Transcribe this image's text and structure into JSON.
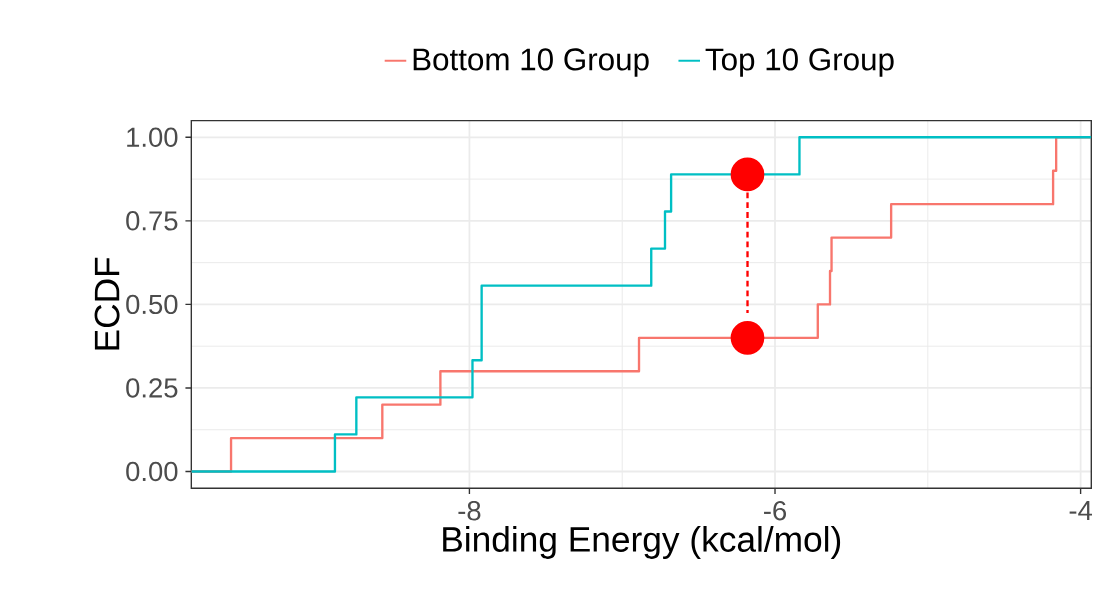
{
  "chart_data": {
    "type": "step",
    "xlabel": "Binding Energy (kcal/mol)",
    "ylabel": "ECDF",
    "xlim": [
      -9.82,
      -3.93
    ],
    "ylim": [
      -0.05,
      1.05
    ],
    "xticks": [
      -8,
      -6,
      -4
    ],
    "yticks": [
      {
        "value": 0,
        "label": "0.00"
      },
      {
        "value": 0.25,
        "label": "0.25"
      },
      {
        "value": 0.5,
        "label": "0.50"
      },
      {
        "value": 0.75,
        "label": "0.75"
      },
      {
        "value": 1,
        "label": "1.00"
      }
    ],
    "grid": true,
    "legend": "top",
    "series": [
      {
        "name": "Bottom 10 Group",
        "color": "#f8766d",
        "x": [
          -9.82,
          -9.56,
          -8.57,
          -8.19,
          -6.89,
          -5.72,
          -5.64,
          -5.63,
          -5.24,
          -4.18,
          -4.16,
          -3.93
        ],
        "values": [
          0,
          0.1,
          0.2,
          0.3,
          0.4,
          0.5,
          0.6,
          0.7,
          0.8,
          0.9,
          1.0,
          1.0
        ]
      },
      {
        "name": "Top 10 Group",
        "color": "#00bfc4",
        "x": [
          -9.82,
          -8.88,
          -8.74,
          -7.98,
          -7.92,
          -6.81,
          -6.72,
          -6.68,
          -5.84,
          -3.93
        ],
        "values": [
          0,
          0.111,
          0.222,
          0.333,
          0.556,
          0.667,
          0.778,
          0.889,
          1.0,
          1.0
        ]
      },
      {
        "type": "line",
        "color": "#ff0000",
        "line_style": "dashed",
        "x": [
          -6.18,
          -6.18
        ],
        "values": [
          0.835,
          0.474
        ]
      },
      {
        "type": "scatter",
        "color": "#ff0000",
        "marker": "circle",
        "x": [
          -6.18,
          -6.18
        ],
        "values": [
          0.889,
          0.4
        ]
      }
    ]
  }
}
